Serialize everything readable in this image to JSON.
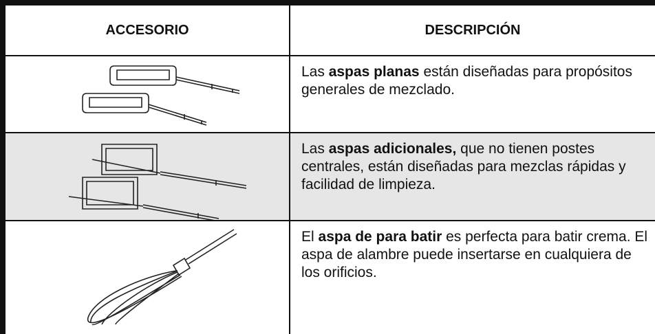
{
  "table": {
    "headers": [
      "ACCESORIO",
      "DESCRIPCIÓN"
    ],
    "rows": [
      {
        "shaded": false,
        "description": [
          {
            "text": "Las ",
            "bold": false
          },
          {
            "text": "aspas planas",
            "bold": true
          },
          {
            "text": " están diseñadas para propósitos generales de mezclado.",
            "bold": false
          }
        ]
      },
      {
        "shaded": true,
        "description": [
          {
            "text": "Las ",
            "bold": false
          },
          {
            "text": "aspas adicionales,",
            "bold": true
          },
          {
            "text": " que no tienen postes centrales, están diseñadas para mezclas rápidas y facilidad de limpieza.",
            "bold": false
          }
        ]
      },
      {
        "shaded": false,
        "description": [
          {
            "text": "El ",
            "bold": false
          },
          {
            "text": "aspa de para batir",
            "bold": true
          },
          {
            "text": " es perfecta para batir crema. El aspa de alambre puede insertarse en cualquiera de los orificios.",
            "bold": false
          }
        ]
      }
    ]
  }
}
